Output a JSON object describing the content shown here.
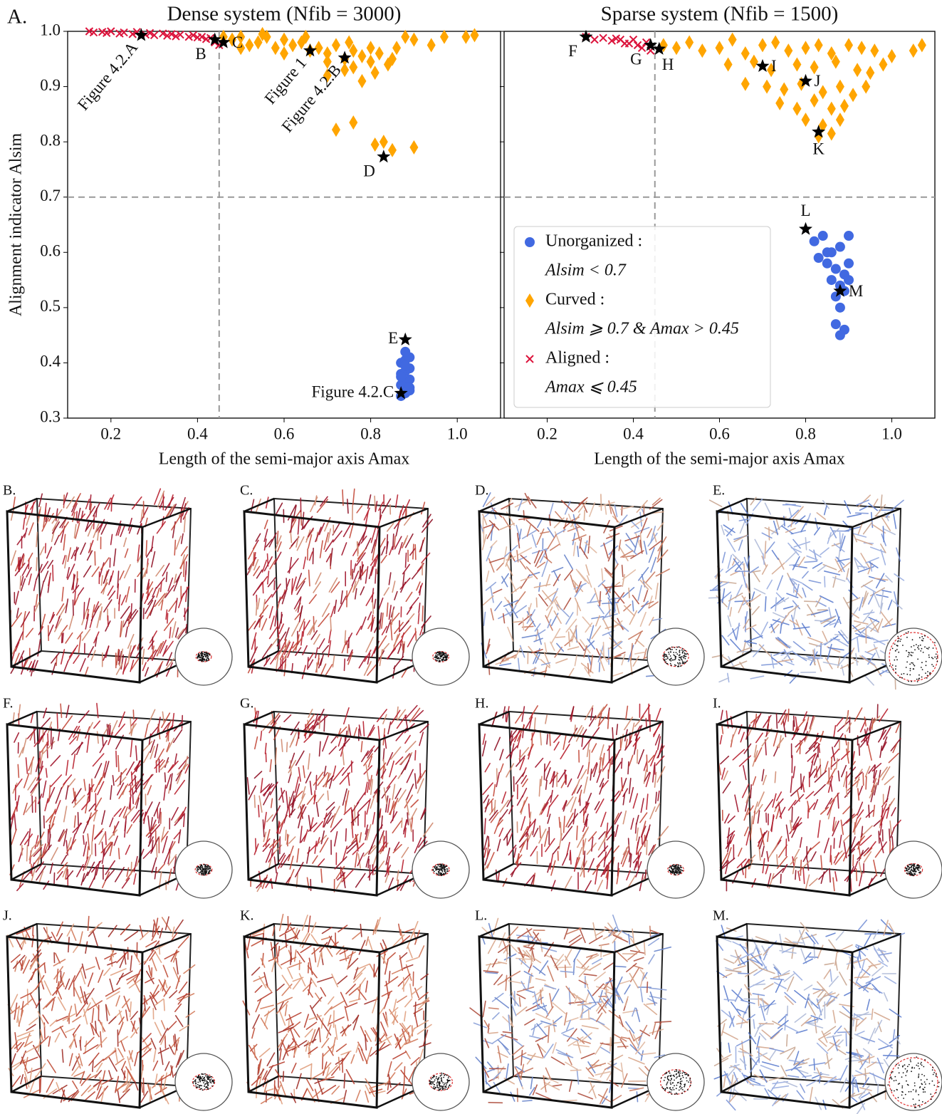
{
  "panel_label": "A.",
  "chart_data": [
    {
      "type": "scatter",
      "title": "Dense system (Nfib = 3000)",
      "xlabel": "Length of the semi-major axis Amax",
      "ylabel": "Alignment indicator Alsim",
      "xlim": [
        0.1,
        1.1
      ],
      "ylim": [
        0.3,
        1.0
      ],
      "xticks": [
        0.2,
        0.4,
        0.6,
        0.8,
        {
          "value": 1,
          "label": "1.0"
        }
      ],
      "yticks": [
        0.3,
        0.4,
        0.5,
        0.6,
        0.7,
        0.8,
        0.9,
        {
          "value": 1,
          "label": "1.0"
        }
      ],
      "thresholds": {
        "x": 0.45,
        "y": 0.7
      },
      "series": [
        {
          "name": "Aligned :",
          "color": "#dc143c",
          "marker": "x",
          "x": [
            0.15,
            0.16,
            0.18,
            0.19,
            0.2,
            0.22,
            0.23,
            0.25,
            0.26,
            0.28,
            0.29,
            0.3,
            0.32,
            0.33,
            0.34,
            0.35,
            0.36,
            0.38,
            0.39,
            0.4,
            0.41,
            0.42,
            0.43,
            0.44,
            0.45
          ],
          "values": [
            1.0,
            0.998,
            0.999,
            0.997,
            1.0,
            0.996,
            0.998,
            0.995,
            0.999,
            0.994,
            0.997,
            0.993,
            0.996,
            0.992,
            0.995,
            0.991,
            0.994,
            0.99,
            0.993,
            0.989,
            0.99,
            0.986,
            0.988,
            0.98,
            0.975
          ]
        },
        {
          "name": "Curved :",
          "color": "#ffa500",
          "marker": "D",
          "x": [
            0.46,
            0.48,
            0.5,
            0.52,
            0.54,
            0.56,
            0.58,
            0.6,
            0.62,
            0.64,
            0.66,
            0.68,
            0.7,
            0.72,
            0.74,
            0.76,
            0.78,
            0.8,
            0.82,
            0.84,
            0.86,
            0.88,
            0.9,
            0.94,
            0.97,
            1.02,
            1.04,
            0.5,
            0.55,
            0.6,
            0.65,
            0.7,
            0.75,
            0.8,
            0.85,
            0.7,
            0.74,
            0.78,
            0.76,
            0.81,
            0.72,
            0.76,
            0.81,
            0.83,
            0.85,
            0.9
          ],
          "values": [
            0.99,
            0.985,
            0.99,
            0.975,
            0.98,
            0.99,
            0.97,
            0.985,
            0.975,
            0.98,
            0.965,
            0.97,
            0.96,
            0.975,
            0.95,
            0.965,
            0.955,
            0.945,
            0.96,
            0.94,
            0.97,
            0.99,
            0.985,
            0.975,
            0.99,
            0.99,
            0.993,
            0.97,
            0.995,
            0.96,
            0.99,
            0.945,
            0.98,
            0.97,
            0.95,
            0.92,
            0.93,
            0.91,
            0.935,
            0.925,
            0.822,
            0.835,
            0.795,
            0.8,
            0.785,
            0.79
          ]
        },
        {
          "name": "Unorganized :",
          "color": "#4169e1",
          "marker": "o",
          "x": [
            0.87,
            0.88,
            0.89,
            0.87,
            0.88,
            0.89,
            0.87,
            0.88,
            0.89,
            0.87,
            0.88,
            0.89,
            0.88,
            0.87,
            0.89,
            0.88
          ],
          "values": [
            0.34,
            0.345,
            0.35,
            0.36,
            0.365,
            0.37,
            0.38,
            0.385,
            0.39,
            0.4,
            0.405,
            0.41,
            0.42,
            0.375,
            0.355,
            0.395
          ]
        }
      ],
      "annotations": [
        {
          "label": "Figure 4.2.A",
          "x": 0.27,
          "y": 0.993,
          "anchor": "rotated"
        },
        {
          "label": "B",
          "x": 0.44,
          "y": 0.985,
          "anchor": "below-left"
        },
        {
          "label": "C",
          "x": 0.46,
          "y": 0.98,
          "anchor": "right"
        },
        {
          "label": "Figure 1",
          "x": 0.66,
          "y": 0.965,
          "anchor": "rotated"
        },
        {
          "label": "Figure 4.2.B",
          "x": 0.74,
          "y": 0.952,
          "anchor": "rotated"
        },
        {
          "label": "D",
          "x": 0.83,
          "y": 0.773,
          "anchor": "below-left"
        },
        {
          "label": "E",
          "x": 0.88,
          "y": 0.442,
          "anchor": "left"
        },
        {
          "label": "Figure 4.2.C",
          "x": 0.87,
          "y": 0.345,
          "anchor": "left"
        }
      ]
    },
    {
      "type": "scatter",
      "title": "Sparse system (Nfib = 1500)",
      "xlabel": "Length of the semi-major axis Amax",
      "xlim": [
        0.1,
        1.1
      ],
      "ylim": [
        0.3,
        1.0
      ],
      "xticks": [
        0.2,
        0.4,
        0.6,
        0.8,
        {
          "value": 1,
          "label": "1.0"
        }
      ],
      "yticks": [
        0.3,
        0.4,
        0.5,
        0.6,
        0.7,
        0.8,
        0.9,
        1
      ],
      "thresholds": {
        "x": 0.45,
        "y": 0.7
      },
      "legend": "lower left",
      "series": [
        {
          "name": "Unorganized :",
          "description": "Alsim < 0.7",
          "color": "#4169e1",
          "marker": "o",
          "x": [
            0.82,
            0.84,
            0.86,
            0.88,
            0.9,
            0.83,
            0.85,
            0.87,
            0.89,
            0.86,
            0.88,
            0.9,
            0.87,
            0.89,
            0.88,
            0.87,
            0.89,
            0.88,
            0.85,
            0.9
          ],
          "values": [
            0.62,
            0.63,
            0.6,
            0.61,
            0.63,
            0.59,
            0.58,
            0.57,
            0.56,
            0.55,
            0.54,
            0.55,
            0.52,
            0.53,
            0.5,
            0.47,
            0.46,
            0.45,
            0.6,
            0.58
          ]
        },
        {
          "name": "Curved :",
          "description": "Alsim ⩾ 0.7 & Amax > 0.45",
          "color": "#ffa500",
          "marker": "D",
          "x": [
            0.47,
            0.5,
            0.53,
            0.56,
            0.6,
            0.63,
            0.66,
            0.7,
            0.73,
            0.76,
            0.8,
            0.83,
            0.86,
            0.9,
            0.93,
            0.96,
            1.0,
            1.05,
            1.07,
            0.62,
            0.68,
            0.72,
            0.78,
            0.82,
            0.87,
            0.92,
            0.95,
            0.98,
            0.66,
            0.71,
            0.75,
            0.79,
            0.84,
            0.88,
            0.91,
            0.94,
            0.74,
            0.78,
            0.82,
            0.86,
            0.89,
            0.8,
            0.84,
            0.88,
            0.83,
            0.86
          ],
          "values": [
            0.975,
            0.97,
            0.98,
            0.965,
            0.97,
            0.985,
            0.96,
            0.975,
            0.98,
            0.965,
            0.97,
            0.975,
            0.96,
            0.975,
            0.97,
            0.965,
            0.955,
            0.965,
            0.975,
            0.94,
            0.945,
            0.93,
            0.94,
            0.935,
            0.945,
            0.93,
            0.925,
            0.94,
            0.905,
            0.9,
            0.895,
            0.905,
            0.89,
            0.9,
            0.885,
            0.9,
            0.87,
            0.86,
            0.875,
            0.86,
            0.865,
            0.84,
            0.83,
            0.84,
            0.81,
            0.815
          ]
        },
        {
          "name": "Aligned :",
          "description": "Amax ⩽ 0.45",
          "color": "#dc143c",
          "marker": "x",
          "x": [
            0.29,
            0.31,
            0.33,
            0.35,
            0.37,
            0.39,
            0.4,
            0.41,
            0.42,
            0.43,
            0.44,
            0.38,
            0.36
          ],
          "values": [
            0.99,
            0.985,
            0.988,
            0.983,
            0.985,
            0.978,
            0.985,
            0.975,
            0.97,
            0.98,
            0.965,
            0.978,
            0.987
          ]
        }
      ],
      "annotations": [
        {
          "label": "F",
          "x": 0.29,
          "y": 0.99,
          "anchor": "below-left"
        },
        {
          "label": "G",
          "x": 0.44,
          "y": 0.975,
          "anchor": "below-left"
        },
        {
          "label": "H",
          "x": 0.46,
          "y": 0.968,
          "anchor": "below-right"
        },
        {
          "label": "I",
          "x": 0.7,
          "y": 0.937,
          "anchor": "right"
        },
        {
          "label": "J",
          "x": 0.8,
          "y": 0.91,
          "anchor": "right"
        },
        {
          "label": "K",
          "x": 0.83,
          "y": 0.818,
          "anchor": "below"
        },
        {
          "label": "L",
          "x": 0.8,
          "y": 0.642,
          "anchor": "above"
        },
        {
          "label": "M",
          "x": 0.88,
          "y": 0.53,
          "anchor": "right"
        }
      ]
    }
  ],
  "panel_labels": [
    "B.",
    "C.",
    "D.",
    "E.",
    "F.",
    "G.",
    "H.",
    "I.",
    "J.",
    "K.",
    "L.",
    "M."
  ]
}
